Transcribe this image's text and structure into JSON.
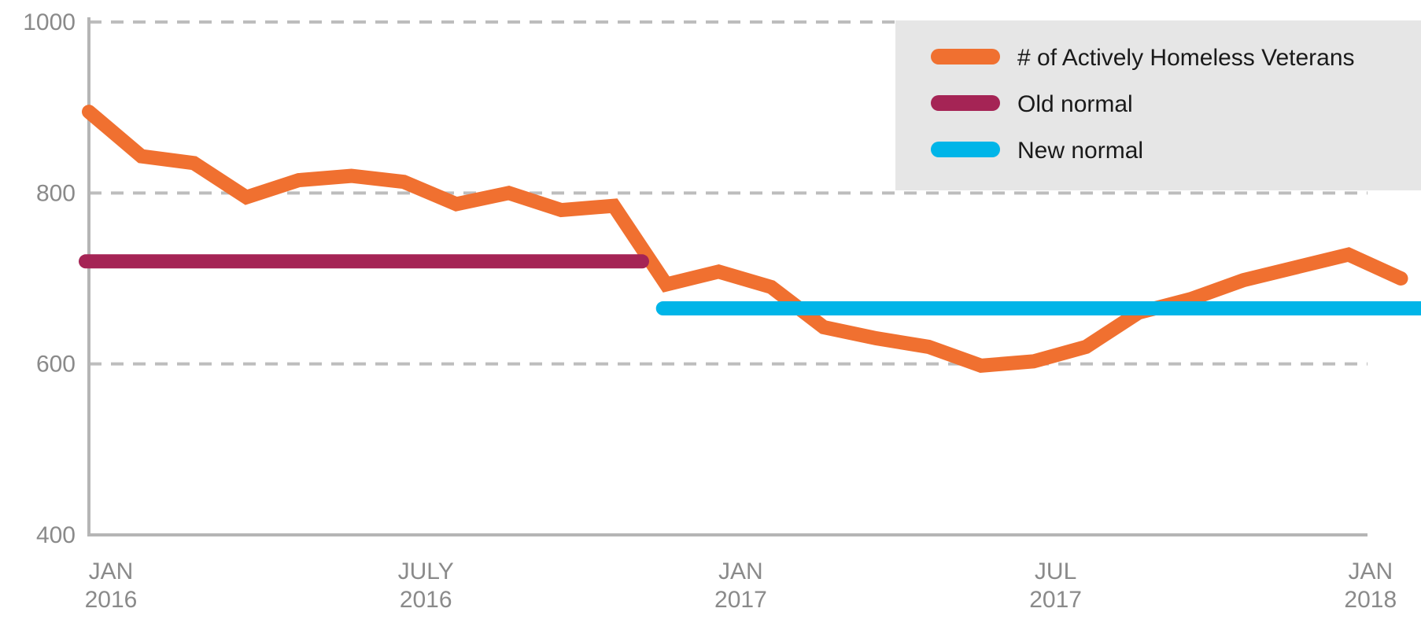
{
  "chart_data": {
    "type": "line",
    "title": "",
    "xlabel": "",
    "ylabel": "",
    "ylim": [
      400,
      1000
    ],
    "yticks": [
      "400",
      "600",
      "800",
      "1000"
    ],
    "grid": "horizontal dashed",
    "legend_position": "top-right",
    "x_ticks": [
      {
        "month": "JAN",
        "year": "2016"
      },
      {
        "month": "JULY",
        "year": "2016"
      },
      {
        "month": "JAN",
        "year": "2017"
      },
      {
        "month": "JUL",
        "year": "2017"
      },
      {
        "month": "JAN",
        "year": "2018"
      }
    ],
    "x": [
      "2016-01",
      "2016-02",
      "2016-03",
      "2016-04",
      "2016-05",
      "2016-06",
      "2016-07",
      "2016-08",
      "2016-09",
      "2016-10",
      "2016-11",
      "2016-12",
      "2017-01",
      "2017-02",
      "2017-03",
      "2017-04",
      "2017-05",
      "2017-06",
      "2017-07",
      "2017-08",
      "2017-09",
      "2017-10",
      "2017-11",
      "2017-12",
      "2018-01",
      "2018-02"
    ],
    "series": [
      {
        "name": "# of Actively Homeless Veterans",
        "color": "#f07030",
        "values": [
          895,
          843,
          835,
          795,
          815,
          820,
          813,
          787,
          800,
          780,
          785,
          693,
          708,
          690,
          643,
          630,
          620,
          598,
          603,
          620,
          660,
          676,
          698,
          713,
          728,
          700
        ]
      },
      {
        "name": "Old normal",
        "color": "#a52455",
        "x_start": "2016-01",
        "x_end": "2016-11",
        "value": 720
      },
      {
        "name": "New normal",
        "color": "#00b5e8",
        "x_start": "2016-12",
        "x_end": "2018-02",
        "value": 665
      }
    ]
  }
}
